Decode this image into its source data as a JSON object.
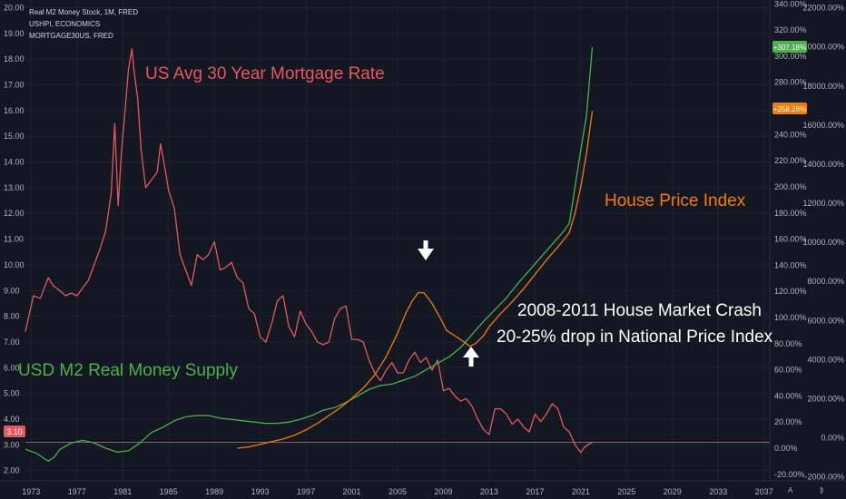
{
  "legend": {
    "line1": "Real M2 Money Stock, 1M, FRED",
    "line2": "USHPI, ECONOMICS",
    "line3": "MORTGAGE30US, FRED"
  },
  "colors": {
    "background": "#131722",
    "mortgage": "#e5575f",
    "m2": "#4caf50",
    "hpi": "#f57c00",
    "grid": "#1f2330",
    "text": "#b2b5be"
  },
  "annotations": {
    "mortgage": "US Avg 30 Year Mortgage Rate",
    "hpi": "House Price Index",
    "m2": "USD M2 Real Money Supply",
    "crash_line1": "2008-2011 House Market Crash",
    "crash_line2": "20-25% drop in National Price Index"
  },
  "icons": {
    "arrow_down": "arrow-down-icon",
    "arrow_up": "arrow-up-icon"
  },
  "chart_data": {
    "type": "line",
    "x_ticks": [
      "1973",
      "1977",
      "1981",
      "1985",
      "1989",
      "1993",
      "1997",
      "2001",
      "2005",
      "2009",
      "2013",
      "2017",
      "2021",
      "2025",
      "2029",
      "2033",
      "2037"
    ],
    "x_range": [
      1972.5,
      2037.5
    ],
    "left_axis": {
      "ticks": [
        "2.00",
        "3.00",
        "4.00",
        "5.00",
        "6.00",
        "7.00",
        "8.00",
        "9.00",
        "10.00",
        "11.00",
        "12.00",
        "13.00",
        "14.00",
        "15.00",
        "16.00",
        "17.00",
        "18.00",
        "19.00",
        "20.00"
      ],
      "range": [
        1.6,
        20.3
      ]
    },
    "right_axis_pct": {
      "ticks": [
        "-20.00%",
        "0.00%",
        "20.00%",
        "40.00%",
        "60.00%",
        "80.00%",
        "100.00%",
        "120.00%",
        "140.00%",
        "160.00%",
        "180.00%",
        "200.00%",
        "220.00%",
        "240.00%",
        "260.00%",
        "280.00%",
        "300.00%",
        "320.00%",
        "340.00%"
      ],
      "range": [
        -25,
        343
      ]
    },
    "right_axis_pct2": {
      "ticks": [
        "-2000.00%",
        "0.00%",
        "2000.00%",
        "4000.00%",
        "6000.00%",
        "8000.00%",
        "10000.00%",
        "12000.00%",
        "14000.00%",
        "16000.00%",
        "18000.00%",
        "20000.00%",
        "22000.00%"
      ],
      "range": [
        -2200,
        22400
      ]
    },
    "badges": {
      "left_last": "3.10",
      "m2_last": "+307.18%",
      "hpi_last": "+258.26%"
    },
    "series": [
      {
        "name": "MORTGAGE30US, FRED",
        "axis": "left",
        "color": "#e5575f",
        "x": [
          1972.5,
          1973.2,
          1973.8,
          1974.5,
          1974.9,
          1975.5,
          1976.0,
          1976.5,
          1977.0,
          1977.5,
          1978.0,
          1978.5,
          1979.0,
          1979.5,
          1980.0,
          1980.3,
          1980.6,
          1980.9,
          1981.2,
          1981.5,
          1981.8,
          1982.0,
          1982.3,
          1982.6,
          1983.0,
          1983.5,
          1984.0,
          1984.3,
          1984.6,
          1985.0,
          1985.5,
          1986.0,
          1986.5,
          1987.0,
          1987.5,
          1988.0,
          1988.5,
          1989.0,
          1989.5,
          1990.0,
          1990.5,
          1991.0,
          1991.5,
          1992.0,
          1992.5,
          1993.0,
          1993.5,
          1994.0,
          1994.5,
          1995.0,
          1995.5,
          1996.0,
          1996.5,
          1997.0,
          1997.5,
          1998.0,
          1998.5,
          1999.0,
          1999.5,
          2000.0,
          2000.5,
          2001.0,
          2001.5,
          2002.0,
          2002.5,
          2003.0,
          2003.5,
          2004.0,
          2004.5,
          2005.0,
          2005.5,
          2006.0,
          2006.5,
          2007.0,
          2007.5,
          2008.0,
          2008.5,
          2009.0,
          2009.5,
          2010.0,
          2010.5,
          2011.0,
          2011.5,
          2012.0,
          2012.5,
          2013.0,
          2013.5,
          2014.0,
          2014.5,
          2015.0,
          2015.5,
          2016.0,
          2016.5,
          2017.0,
          2017.5,
          2018.0,
          2018.5,
          2019.0,
          2019.5,
          2020.0,
          2020.5,
          2021.0,
          2021.3,
          2021.6,
          2022.0
        ],
        "y": [
          7.4,
          8.8,
          8.7,
          9.5,
          9.2,
          9.0,
          8.8,
          8.9,
          8.8,
          9.1,
          9.4,
          10.0,
          10.6,
          11.3,
          12.8,
          15.5,
          12.3,
          14.5,
          16.0,
          17.6,
          18.4,
          17.5,
          16.5,
          14.5,
          13.0,
          13.3,
          13.6,
          14.7,
          14.0,
          12.9,
          12.2,
          10.4,
          9.8,
          9.2,
          10.4,
          10.2,
          10.4,
          10.9,
          9.8,
          9.9,
          10.1,
          9.5,
          9.3,
          8.3,
          8.1,
          7.2,
          7.0,
          7.7,
          8.6,
          8.8,
          7.6,
          7.2,
          8.2,
          7.7,
          7.4,
          7.0,
          6.9,
          7.0,
          7.9,
          8.3,
          8.4,
          7.1,
          7.1,
          7.0,
          6.3,
          5.8,
          5.5,
          5.9,
          6.2,
          5.8,
          5.8,
          6.3,
          6.6,
          6.2,
          6.4,
          5.9,
          6.3,
          5.1,
          5.2,
          4.9,
          4.7,
          4.8,
          4.5,
          4.0,
          3.6,
          3.4,
          4.4,
          4.4,
          4.2,
          3.8,
          4.0,
          3.7,
          3.5,
          4.2,
          3.9,
          4.2,
          4.6,
          4.4,
          3.7,
          3.5,
          3.0,
          2.7,
          2.9,
          3.0,
          3.1
        ]
      },
      {
        "name": "Real M2 Money Stock, 1M, FRED",
        "axis": "right_pct",
        "color": "#4caf50",
        "x": [
          1972.5,
          1973.5,
          1974.5,
          1975.0,
          1975.5,
          1976.5,
          1977.5,
          1978.5,
          1979.5,
          1980.5,
          1981.5,
          1982.5,
          1983.5,
          1984.5,
          1985.5,
          1986.5,
          1987.5,
          1988.5,
          1989.5,
          1990.5,
          1991.5,
          1992.5,
          1993.5,
          1994.5,
          1995.5,
          1996.5,
          1997.5,
          1998.5,
          1999.5,
          2000.5,
          2001.5,
          2002.5,
          2003.5,
          2004.5,
          2005.5,
          2006.5,
          2007.5,
          2008.5,
          2009.5,
          2010.5,
          2011.5,
          2012.5,
          2013.5,
          2014.5,
          2015.5,
          2016.5,
          2017.5,
          2018.5,
          2019.5,
          2020.0,
          2020.5,
          2021.0,
          2021.5,
          2022.0
        ],
        "y": [
          -0.8,
          -4,
          -10,
          -7,
          -1,
          4,
          6,
          4,
          0,
          -3,
          -2,
          4,
          12,
          16,
          21,
          24,
          25,
          25,
          23,
          22,
          21,
          20,
          19,
          19,
          20,
          22,
          25,
          29,
          31,
          35,
          40,
          45,
          48,
          49,
          52,
          55,
          60,
          65,
          70,
          77,
          87,
          97,
          106,
          115,
          126,
          136,
          146,
          156,
          166,
          172,
          200,
          228,
          255,
          307
        ]
      },
      {
        "name": "USHPI, ECONOMICS",
        "axis": "right_pct",
        "color": "#f57c00",
        "x": [
          1991.0,
          1992.0,
          1993.0,
          1994.0,
          1995.0,
          1996.0,
          1997.0,
          1998.0,
          1999.0,
          2000.0,
          2001.0,
          2002.0,
          2003.0,
          2004.0,
          2005.0,
          2005.7,
          2006.3,
          2006.8,
          2007.3,
          2008.0,
          2008.7,
          2009.3,
          2010.0,
          2010.7,
          2011.3,
          2011.8,
          2012.5,
          2013.0,
          2014.0,
          2015.0,
          2016.0,
          2017.0,
          2018.0,
          2019.0,
          2020.0,
          2020.5,
          2021.0,
          2021.5,
          2022.0
        ],
        "y": [
          0,
          1,
          3,
          5,
          7,
          10,
          14,
          19,
          25,
          31,
          38,
          46,
          56,
          70,
          88,
          103,
          113,
          119,
          119,
          111,
          100,
          90,
          86,
          82,
          78,
          80,
          86,
          93,
          103,
          112,
          122,
          133,
          144,
          154,
          165,
          180,
          200,
          226,
          258
        ]
      }
    ]
  }
}
